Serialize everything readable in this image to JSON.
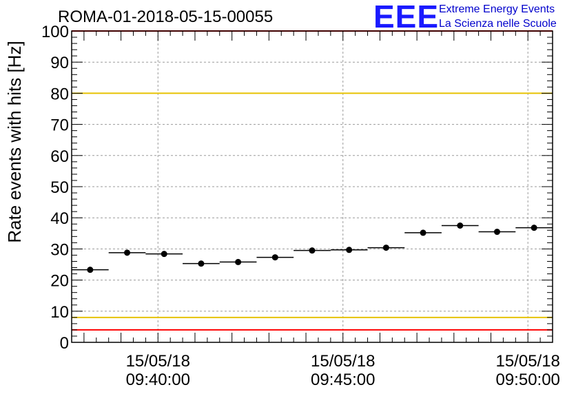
{
  "header": {
    "run_title": "ROMA-01-2018-05-15-00055",
    "logo_mark": "EEE",
    "logo_line1": "Extreme Energy Events",
    "logo_line2": "La Scienza nelle Scuole",
    "logo_color": "#1a1aff"
  },
  "chart_data": {
    "type": "scatter",
    "title": "ROMA-01-2018-05-15-00055",
    "ylabel": "Rate events with hits [Hz]",
    "xlabel": "",
    "ylim": [
      0,
      100
    ],
    "y_ticks": [
      "0",
      "10",
      "20",
      "30",
      "40",
      "50",
      "60",
      "70",
      "80",
      "90",
      "100"
    ],
    "x_tick_labels": [
      {
        "date": "15/05/18",
        "time": "09:40:00"
      },
      {
        "date": "15/05/18",
        "time": "09:45:00"
      },
      {
        "date": "15/05/18",
        "time": "09:50:00"
      }
    ],
    "x_range_time": [
      "09:37:40",
      "09:50:40"
    ],
    "grid": true,
    "bin_width_seconds": 60,
    "series": [
      {
        "points": [
          {
            "time": "09:38:10",
            "value": 23.3
          },
          {
            "time": "09:39:10",
            "value": 28.8
          },
          {
            "time": "09:40:10",
            "value": 28.4
          },
          {
            "time": "09:41:10",
            "value": 25.3
          },
          {
            "time": "09:42:10",
            "value": 25.8
          },
          {
            "time": "09:43:10",
            "value": 27.3
          },
          {
            "time": "09:44:10",
            "value": 29.5
          },
          {
            "time": "09:45:10",
            "value": 29.7
          },
          {
            "time": "09:46:10",
            "value": 30.4
          },
          {
            "time": "09:47:10",
            "value": 35.2
          },
          {
            "time": "09:48:10",
            "value": 37.5
          },
          {
            "time": "09:49:10",
            "value": 35.5
          },
          {
            "time": "09:50:10",
            "value": 36.8
          }
        ]
      }
    ],
    "threshold_lines": [
      {
        "value": 100,
        "color": "#ff0000"
      },
      {
        "value": 80,
        "color": "#e6c200"
      },
      {
        "value": 8,
        "color": "#e6c200"
      },
      {
        "value": 4,
        "color": "#ff0000"
      }
    ]
  }
}
